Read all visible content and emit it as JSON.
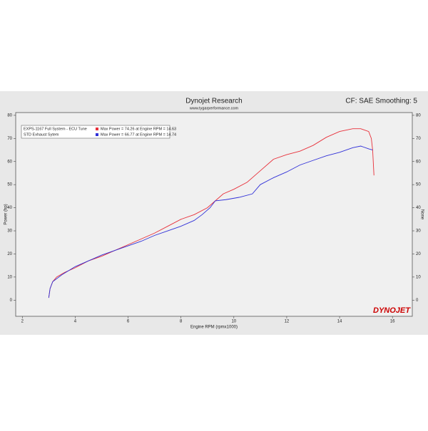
{
  "chart_data": {
    "type": "line",
    "title": "Dynojet Research",
    "subtitle": "www.tygarperformance.com",
    "settings": "CF: SAE Smoothing: 5",
    "x_label": "Engine RPM (rpmx1000)",
    "y_label": "Power (hp)",
    "y2_label": "None",
    "logo": "DYNOJET",
    "xlim": [
      1.75,
      16.75
    ],
    "xticks": [
      2,
      4,
      6,
      8,
      10,
      12,
      14,
      16
    ],
    "ylim": [
      -7,
      81.2
    ],
    "yticks": [
      0,
      10,
      20,
      30,
      40,
      50,
      60,
      70,
      80
    ],
    "series": [
      {
        "name": "EXPS-1167 Full System - ECU Tune",
        "legend_note": "Max Power = 74.26 at Engine RPM = 14.63",
        "color": "#e8303a",
        "x": [
          3.0,
          3.05,
          3.15,
          3.3,
          3.6,
          4,
          4.5,
          5,
          5.5,
          6,
          6.5,
          7,
          7.5,
          8,
          8.5,
          9,
          9.3,
          9.6,
          10,
          10.5,
          10.8,
          11,
          11.5,
          12,
          12.5,
          13,
          13.5,
          14,
          14.5,
          14.8,
          15.1,
          15.2,
          15.25,
          15.3
        ],
        "values": [
          1,
          5,
          8,
          10,
          12,
          14,
          17,
          19,
          21.5,
          24,
          26.5,
          29,
          32,
          35,
          37,
          40,
          43,
          46,
          48,
          51,
          54,
          56,
          61,
          63,
          64.5,
          67,
          70.5,
          73,
          74.2,
          74.2,
          73,
          70,
          65,
          54
        ]
      },
      {
        "name": "STD Exhaust Sytem",
        "legend_note": "Max Power = 66.77 at Engine RPM = 14.74",
        "color": "#3030d8",
        "x": [
          3.0,
          3.05,
          3.15,
          3.5,
          4,
          4.5,
          5,
          5.5,
          6,
          6.5,
          7,
          7.5,
          8,
          8.5,
          8.8,
          9.1,
          9.3,
          9.7,
          10.2,
          10.7,
          11,
          11.5,
          12,
          12.5,
          13,
          13.5,
          14,
          14.5,
          14.8,
          15.1,
          15.25
        ],
        "values": [
          1,
          5,
          8,
          11,
          14.5,
          17,
          19.5,
          21.5,
          23.5,
          25.5,
          28,
          30,
          32,
          34.5,
          37,
          40,
          43,
          43.5,
          44.5,
          46,
          50,
          53,
          55.5,
          58.5,
          60.5,
          62.5,
          64,
          66,
          66.7,
          65.5,
          65
        ]
      }
    ]
  }
}
